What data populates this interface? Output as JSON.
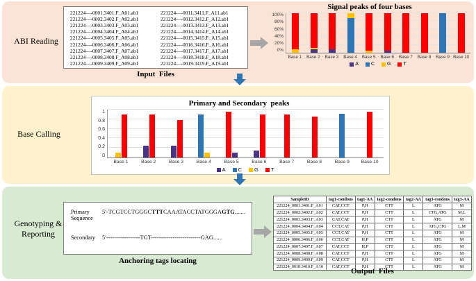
{
  "colors": {
    "band_abi": "#fbe3d5",
    "band_base_calling": "#fff2cc",
    "band_genotyping": "#d9ead3",
    "A": "#4a3486",
    "C": "#2e75b6",
    "G": "#ffc000",
    "T": "#ff0000",
    "arrow_gray": "#a6a6a6",
    "arrow_blue": "#2e75b6"
  },
  "stages": {
    "abi": "ABI Reading",
    "base": "Base Calling",
    "geno": "Genotyping &\nReporting"
  },
  "input_files": {
    "caption": "Input  Files",
    "columns": [
      [
        "221224—-0001.3401.F_A01.ab1",
        "221224—-0002.3402.F_A02.ab1",
        "221224—-0003.3403.F_A03.ab1",
        "221224—-0004.3404.F_A04.ab1",
        "221224—-0005.3405.F_A05.ab1",
        "221224—-0006.3406.F_A06.ab1",
        "221224—-0007.3407.F_A07.ab1",
        "221224—-0008.3408.F_A08.ab1",
        "221224—-0009.3409.F_A09.ab1"
      ],
      [
        "221224—-0011.3411.F_A11.ab1",
        "221224—-0012.3412.F_A12.ab1",
        "221224—-0013.3413.F_A13.ab1",
        "221224—-0014.3414.F_A14.ab1",
        "221224—-0015.3415.F_A15.ab1",
        "221224—-0016.3416.F_A16.ab1",
        "221224—-0017.3417.F_A17.ab1",
        "221224—-0018.3418.F_A18.ab1",
        "221224—-0019.3419.F_A19.ab1"
      ]
    ]
  },
  "chart_data": [
    {
      "type": "bar",
      "subtype": "stacked-percent",
      "title": "Signal peaks of four bases",
      "categories": [
        "Base 1",
        "Base 2",
        "Base 3",
        "Base 4",
        "Base 5",
        "Base 6",
        "Base 7",
        "Base 8",
        "Base 9",
        "Base 10"
      ],
      "series": [
        {
          "name": "A",
          "values": [
            0,
            8,
            8,
            0,
            0,
            6,
            0,
            0,
            0,
            0
          ]
        },
        {
          "name": "C",
          "values": [
            0,
            0,
            0,
            88,
            0,
            0,
            0,
            0,
            100,
            0
          ]
        },
        {
          "name": "G",
          "values": [
            8,
            4,
            0,
            12,
            6,
            0,
            0,
            0,
            0,
            0
          ]
        },
        {
          "name": "T",
          "values": [
            92,
            88,
            92,
            0,
            94,
            94,
            100,
            100,
            0,
            100
          ]
        }
      ],
      "yticks": [
        "0%",
        "20%",
        "40%",
        "60%",
        "80%",
        "100%"
      ],
      "ylim": [
        0,
        100
      ],
      "legend": [
        "A",
        "C",
        "G",
        "T"
      ],
      "legend_position": "bottom",
      "grid": true
    },
    {
      "type": "bar",
      "subtype": "grouped",
      "title": "Primary and Secondary  peaks",
      "categories": [
        "Base 1",
        "Base 2",
        "Base 3",
        "Base 4",
        "Base 5",
        "Base 6",
        "Base 7",
        "Base 8",
        "Base 9",
        "Base 10"
      ],
      "groups": [
        [
          {
            "base": "G",
            "value": 0.1
          },
          {
            "base": "T",
            "value": 0.9
          }
        ],
        [
          {
            "base": "A",
            "value": 0.25
          },
          {
            "base": "T",
            "value": 0.9
          }
        ],
        [
          {
            "base": "A",
            "value": 0.25
          },
          {
            "base": "T",
            "value": 0.78
          }
        ],
        [
          {
            "base": "C",
            "value": 0.9
          },
          {
            "base": "G",
            "value": 0.1
          }
        ],
        [
          {
            "base": "T",
            "value": 0.95
          },
          {
            "base": "A",
            "value": 0.1
          }
        ],
        [
          {
            "base": "A",
            "value": 0.15
          },
          {
            "base": "T",
            "value": 0.9
          }
        ],
        [
          {
            "base": "T",
            "value": 0.9
          }
        ],
        [
          {
            "base": "T",
            "value": 0.85
          }
        ],
        [
          {
            "base": "C",
            "value": 0.92
          }
        ],
        [
          {
            "base": "T",
            "value": 0.95
          }
        ]
      ],
      "yticks": [
        "0",
        "0.2",
        "0.4",
        "0.6",
        "0.8",
        "1"
      ],
      "ylim": [
        0,
        1
      ],
      "legend": [
        "A",
        "C",
        "G",
        "T"
      ],
      "legend_position": "bottom",
      "grid": true
    }
  ],
  "sequence_box": {
    "primary_label": "Primary",
    "sequence_label": "Sequence",
    "secondary_label": "Secondary",
    "primary_parts": [
      {
        "text": "5'-TCGTCCTGGGC",
        "bold": false
      },
      {
        "text": "TTT",
        "bold": true
      },
      {
        "text": "CAAATACCTATGGGA",
        "bold": false
      },
      {
        "text": "GTG",
        "bold": true
      },
      {
        "text": ".......",
        "bold": false
      }
    ],
    "secondary_parts": [
      {
        "text": "5'-----------------TGT-------------------------GAG......",
        "bold": false
      }
    ],
    "caption": "Anchoring tags locating"
  },
  "output_table": {
    "caption": "Output  Files",
    "headers": [
      "SampleID",
      "tag1-condons",
      "tag1-AA",
      "tag2-condons",
      "tag2-AA",
      "tag3-condons",
      "tag3-AA"
    ],
    "rows": [
      [
        "221224_0001.3401.F_A01",
        "CAT,CCT",
        "P,H",
        "CTT",
        "L",
        "ATG",
        "M"
      ],
      [
        "221224_0002.3402.F_A02",
        "CAT,CCT",
        "P,H",
        "CTT",
        "L",
        "CTG,ATG",
        "M,L"
      ],
      [
        "221224_0003.3403.F_A03",
        "CAT,CAT",
        "P,H",
        "CTT",
        "L",
        "ATG",
        "M"
      ],
      [
        "221224_0004.3404.F_A04",
        "CCT,CAT",
        "P,H",
        "CTT",
        "L",
        "ATG,CTG",
        "L,M"
      ],
      [
        "221224_0005.3405.F_A05",
        "CCT,CAT",
        "P,H",
        "CTT",
        "L",
        "ATG",
        "M"
      ],
      [
        "221224_0006.3406.F_A06",
        "CCT,CAT",
        "H,P",
        "CTT",
        "L",
        "ATG",
        "M"
      ],
      [
        "221224_0007.3407.F_A07",
        "CAT,CCT",
        "H,P",
        "CTT",
        "L",
        "ATG",
        "M"
      ],
      [
        "221224_0008.3408.F_A08",
        "CAT,CCT",
        "P,H",
        "CTT",
        "L",
        "ATG",
        "M"
      ],
      [
        "221224_0009.3409.F_A09",
        "CAT,CCT",
        "P,H",
        "CTT",
        "L",
        "ATG",
        "M"
      ],
      [
        "221224_0010.3410.F_A10",
        "CAT,CCT",
        "P,H",
        "CTT",
        "L",
        "ATG",
        "M"
      ]
    ]
  }
}
